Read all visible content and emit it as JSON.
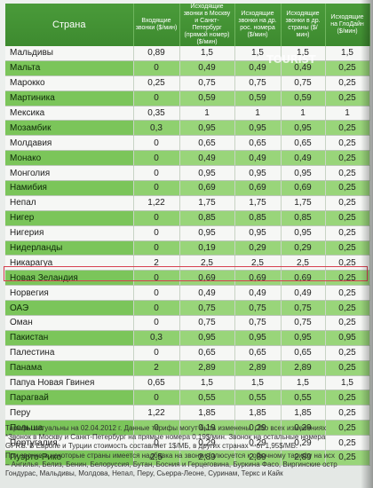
{
  "table": {
    "headers": {
      "country": "Страна",
      "incoming": "Входящие звонки ($/мин)",
      "to_moscow": "Исходящие звонки в Москву и Санкт-Петербург (прямой номер) ($/мин)",
      "to_regular": "Исходящие звонки на др. рос. номера ($/мин)",
      "col4": "Исходящие звонки в др. страны ($/мин)",
      "col5": "Исходящие на ГлоДайн ($/мин)"
    },
    "rows": [
      {
        "country": "Мальдивы",
        "c1": "0,89",
        "c2": "1,5",
        "c3": "1,5",
        "c4": "1,5",
        "c5": "1,5"
      },
      {
        "country": "Мальта",
        "c1": "0",
        "c2": "0,49",
        "c3": "0,49",
        "c4": "0,49",
        "c5": "0,25"
      },
      {
        "country": "Марокко",
        "c1": "0,25",
        "c2": "0,75",
        "c3": "0,75",
        "c4": "0,75",
        "c5": "0,25"
      },
      {
        "country": "Мартиника",
        "c1": "0",
        "c2": "0,59",
        "c3": "0,59",
        "c4": "0,59",
        "c5": "0,25"
      },
      {
        "country": "Мексика",
        "c1": "0,35",
        "c2": "1",
        "c3": "1",
        "c4": "1",
        "c5": "1"
      },
      {
        "country": "Мозамбик",
        "c1": "0,3",
        "c2": "0,95",
        "c3": "0,95",
        "c4": "0,95",
        "c5": "0,25"
      },
      {
        "country": "Молдавия",
        "c1": "0",
        "c2": "0,65",
        "c3": "0,65",
        "c4": "0,65",
        "c5": "0,25"
      },
      {
        "country": "Монако",
        "c1": "0",
        "c2": "0,49",
        "c3": "0,49",
        "c4": "0,49",
        "c5": "0,25"
      },
      {
        "country": "Монголия",
        "c1": "0",
        "c2": "0,95",
        "c3": "0,95",
        "c4": "0,95",
        "c5": "0,25"
      },
      {
        "country": "Намибия",
        "c1": "0",
        "c2": "0,69",
        "c3": "0,69",
        "c4": "0,69",
        "c5": "0,25"
      },
      {
        "country": "Непал",
        "c1": "1,22",
        "c2": "1,75",
        "c3": "1,75",
        "c4": "1,75",
        "c5": "0,25"
      },
      {
        "country": "Нигер",
        "c1": "0",
        "c2": "0,85",
        "c3": "0,85",
        "c4": "0,85",
        "c5": "0,25"
      },
      {
        "country": "Нигерия",
        "c1": "0",
        "c2": "0,95",
        "c3": "0,95",
        "c4": "0,95",
        "c5": "0,25"
      },
      {
        "country": "Нидерланды",
        "c1": "0",
        "c2": "0,19",
        "c3": "0,29",
        "c4": "0,29",
        "c5": "0,25"
      },
      {
        "country": "Никарагуа",
        "c1": "2",
        "c2": "2,5",
        "c3": "2,5",
        "c4": "2,5",
        "c5": "0,25"
      },
      {
        "country": "Новая Зеландия",
        "c1": "0",
        "c2": "0,69",
        "c3": "0,69",
        "c4": "0,69",
        "c5": "0,25"
      },
      {
        "country": "Норвегия",
        "c1": "0",
        "c2": "0,49",
        "c3": "0,49",
        "c4": "0,49",
        "c5": "0,25"
      },
      {
        "country": "ОАЭ",
        "c1": "0",
        "c2": "0,75",
        "c3": "0,75",
        "c4": "0,75",
        "c5": "0,25"
      },
      {
        "country": "Оман",
        "c1": "0",
        "c2": "0,75",
        "c3": "0,75",
        "c4": "0,75",
        "c5": "0,25"
      },
      {
        "country": "Пакистан",
        "c1": "0,3",
        "c2": "0,95",
        "c3": "0,95",
        "c4": "0,95",
        "c5": "0,95"
      },
      {
        "country": "Палестина",
        "c1": "0",
        "c2": "0,65",
        "c3": "0,65",
        "c4": "0,65",
        "c5": "0,25"
      },
      {
        "country": "Панама",
        "c1": "2",
        "c2": "2,89",
        "c3": "2,89",
        "c4": "2,89",
        "c5": "0,25"
      },
      {
        "country": "Папуа Новая Гвинея",
        "c1": "0,65",
        "c2": "1,5",
        "c3": "1,5",
        "c4": "1,5",
        "c5": "1,5"
      },
      {
        "country": "Парагвай",
        "c1": "0",
        "c2": "0,55",
        "c3": "0,55",
        "c4": "0,55",
        "c5": "0,25"
      },
      {
        "country": "Перу",
        "c1": "1,22",
        "c2": "1,85",
        "c3": "1,85",
        "c4": "1,85",
        "c5": "0,25"
      },
      {
        "country": "Польша",
        "c1": "0",
        "c2": "0,19",
        "c3": "0,29",
        "c4": "0,29",
        "c5": "0,25"
      },
      {
        "country": "Португалия",
        "c1": "0",
        "c2": "0,29",
        "c3": "0,29",
        "c4": "0,29",
        "c5": "0,25"
      },
      {
        "country": "Пуэрто-Рико",
        "c1": "2,5",
        "c2": "2,89",
        "c3": "2,89",
        "c4": "2,89",
        "c5": "0,25"
      }
    ],
    "highlighted_country": "ОАЭ"
  },
  "watermark": "TOURIST",
  "notes": [
    "Тарифы актуальны на 02.04.2012 г. Данные тарифы могут быть изменены. Обо всех изменениях",
    "*Звонок в Москву и Санкт-Петербург на прямые номера 0,19$/мин. Звонок на остальные номера",
    "GPRS. В Европе и Турции стоимость составляет 1$/МБ, в других странах – от 1,95$/МБ.",
    "При звонке в некоторые страны имеется надбавка на звонки (плюсуется к обычному тарифу на исх",
    "– Ангилья, Белиз, Бенин, Белоруссия, Бутан, Босния и Герцеговина, Буркина Фасо, Виргинские остр",
    "                              Гондурас, Мальдивы, Молдова, Непал, Перу, Сьерра-Леоне, Суринам, Теркс и Кайк"
  ]
}
